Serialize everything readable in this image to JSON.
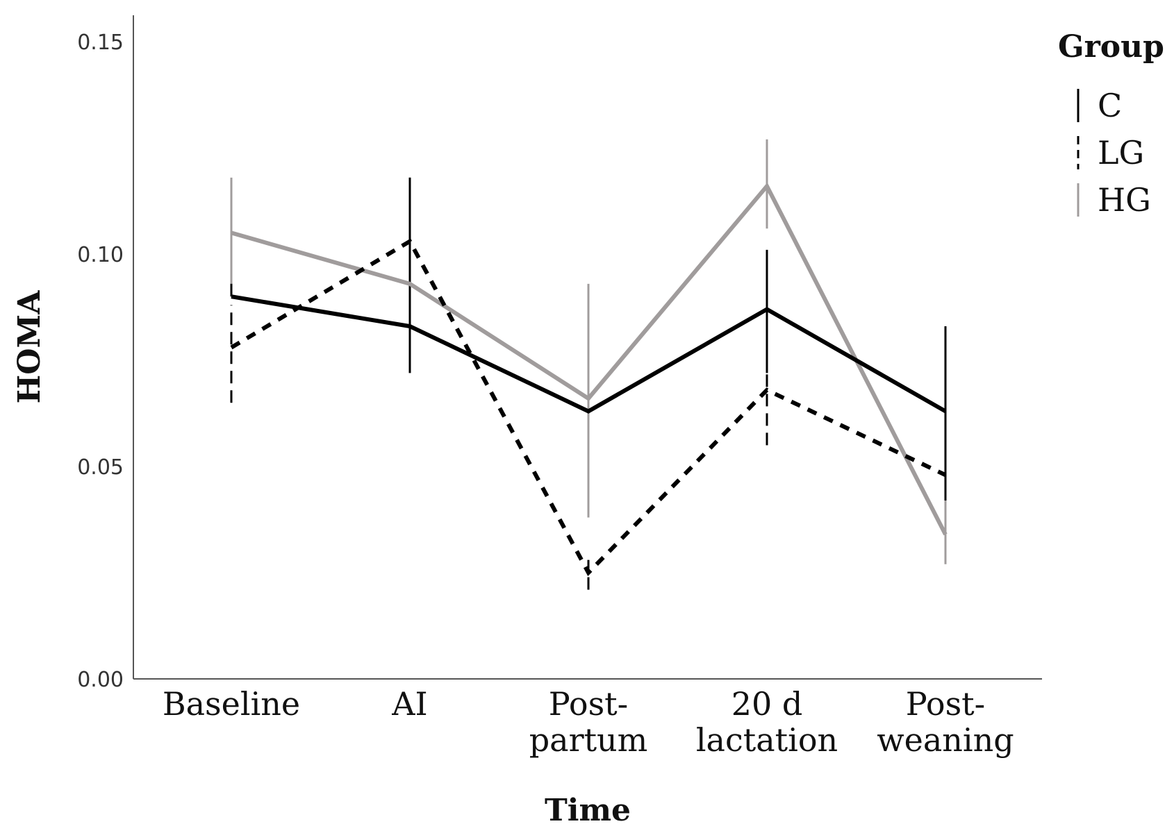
{
  "chart_data": {
    "type": "line",
    "title": "",
    "xlabel": "Time",
    "ylabel": "HOMA",
    "ylim": [
      0,
      0.155
    ],
    "yticks": [
      0.0,
      0.05,
      0.1,
      0.15
    ],
    "ytick_labels": [
      "0.00",
      "0.05",
      "0.10",
      "0.15"
    ],
    "categories": [
      [
        "Baseline"
      ],
      [
        "AI"
      ],
      [
        "Post-",
        "partum"
      ],
      [
        "20 d",
        "lactation"
      ],
      [
        "Post-",
        "weaning"
      ]
    ],
    "legend": {
      "title": "Group",
      "position": "top-right"
    },
    "series": [
      {
        "name": "C",
        "style": "solid",
        "color": "#000000",
        "values": [
          0.09,
          0.083,
          0.063,
          0.087,
          0.063
        ],
        "error_low": [
          0.09,
          0.072,
          0.063,
          0.072,
          0.042
        ],
        "error_high": [
          0.093,
          0.118,
          0.063,
          0.101,
          0.083
        ]
      },
      {
        "name": "LG",
        "style": "dashed",
        "color": "#000000",
        "values": [
          0.078,
          0.103,
          0.025,
          0.068,
          0.048
        ],
        "error_low": [
          0.065,
          0.09,
          0.021,
          0.055,
          0.048
        ],
        "error_high": [
          0.088,
          0.118,
          0.028,
          0.08,
          0.048
        ]
      },
      {
        "name": "HG",
        "style": "solid",
        "color": "#a09c9c",
        "values": [
          0.105,
          0.093,
          0.066,
          0.116,
          0.034
        ],
        "error_low": [
          0.092,
          0.083,
          0.038,
          0.106,
          0.027
        ],
        "error_high": [
          0.118,
          0.103,
          0.093,
          0.127,
          0.045
        ]
      }
    ]
  }
}
